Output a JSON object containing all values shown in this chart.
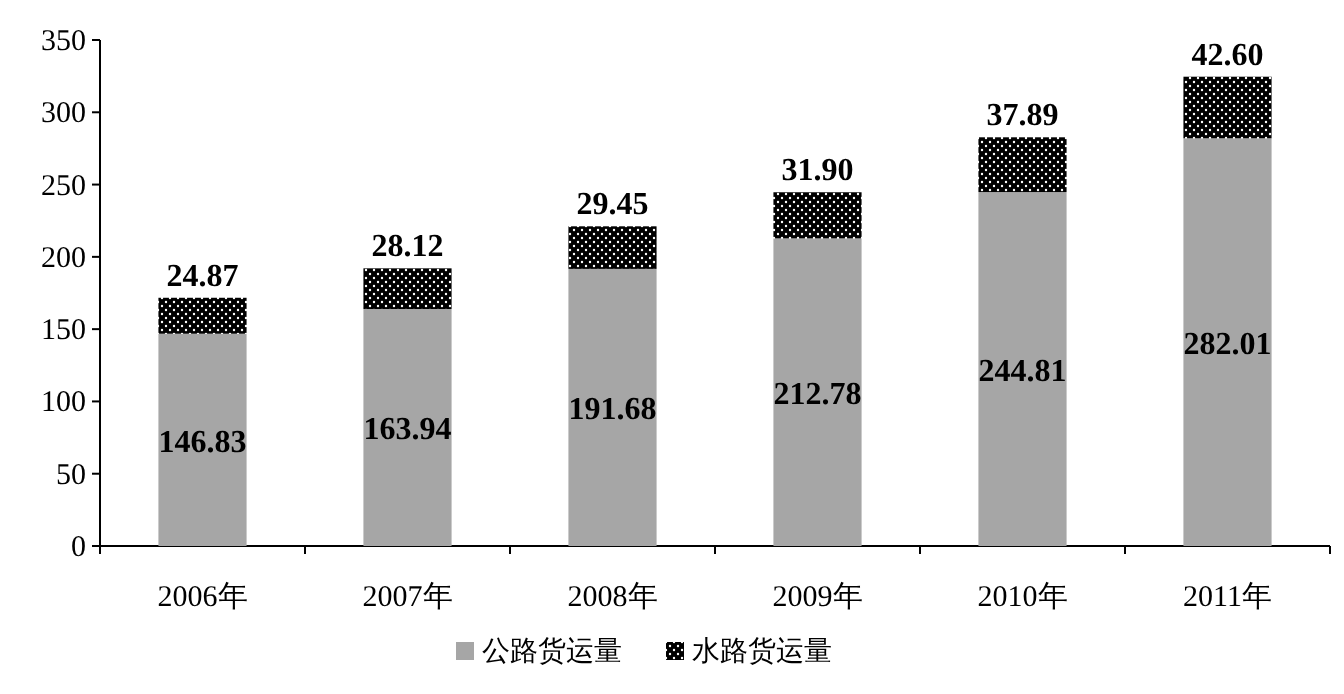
{
  "chart_data": {
    "type": "bar",
    "stacked": true,
    "categories": [
      "2006年",
      "2007年",
      "2008年",
      "2009年",
      "2010年",
      "2011年"
    ],
    "series": [
      {
        "name": "公路货运量",
        "color": "#a6a6a6",
        "values": [
          146.83,
          163.94,
          191.68,
          212.78,
          244.81,
          282.01
        ],
        "value_labels": [
          "146.83",
          "163.94",
          "191.68",
          "212.78",
          "244.81",
          "282.01"
        ]
      },
      {
        "name": "水路货运量",
        "color": "#000000",
        "values": [
          24.87,
          28.12,
          29.45,
          31.9,
          37.89,
          42.6
        ],
        "value_labels": [
          "24.87",
          "28.12",
          "29.45",
          "31.90",
          "37.89",
          "42.60"
        ]
      }
    ],
    "ylim": [
      0,
      350
    ],
    "yticks": [
      0,
      50,
      100,
      150,
      200,
      250,
      300,
      350
    ],
    "legend": "bottom"
  }
}
